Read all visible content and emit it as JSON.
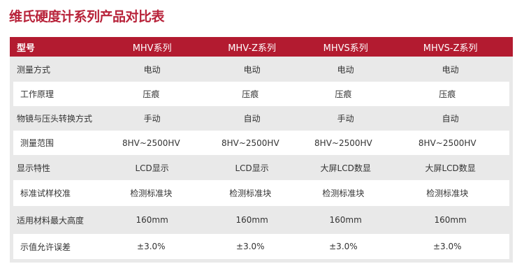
{
  "title": "维氏硬度计系列产品对比表",
  "colors": {
    "header_bg": "#b31b30",
    "title": "#b8233a",
    "row_alt": "#e9e9e9"
  },
  "header": [
    "型号",
    "MHV系列",
    "MHV-Z系列",
    "MHVS系列",
    "MHVS-Z系列"
  ],
  "rows": [
    [
      "测量方式",
      "电动",
      "电动",
      "电动",
      "电动"
    ],
    [
      "工作原理",
      "压痕",
      "压痕",
      "压痕",
      "压痕"
    ],
    [
      "物镜与压头转换方式",
      "手动",
      "自动",
      "手动",
      "自动"
    ],
    [
      "测量范围",
      "8HV~2500HV",
      "8HV~2500HV",
      "8HV~2500HV",
      "8HV~2500HV"
    ],
    [
      "显示特性",
      "LCD显示",
      "LCD显示",
      "大屏LCD数显",
      "大屏LCD数显"
    ],
    [
      "标准试样校准",
      "检测标准块",
      "检测标准块",
      "检测标准块",
      "检测标准块"
    ],
    [
      "适用材料最大高度",
      "160mm",
      "160mm",
      "160mm",
      "160mm"
    ],
    [
      "示值允许误差",
      "±3.0%",
      "±3.0%",
      "±3.0%",
      "±3.0%"
    ]
  ]
}
